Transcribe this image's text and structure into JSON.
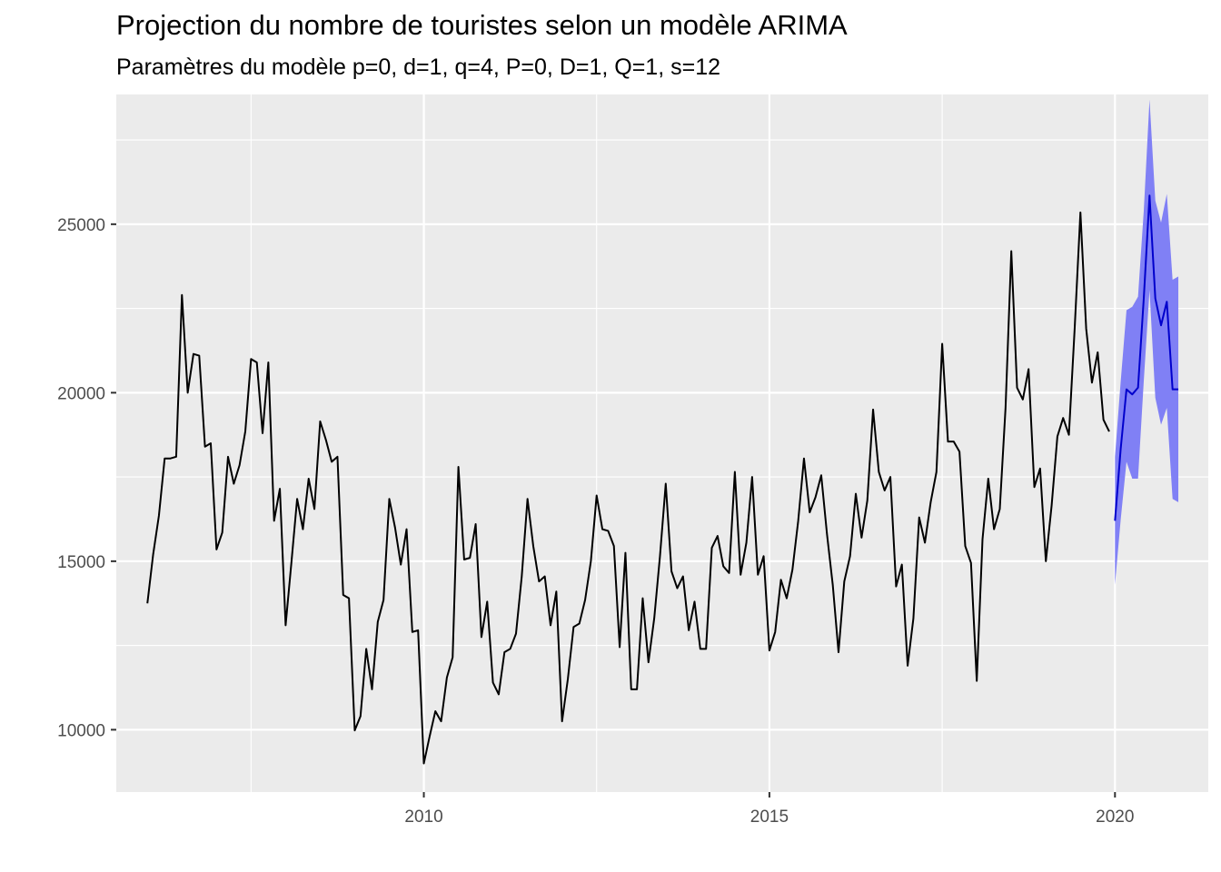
{
  "chart_data": {
    "type": "line",
    "title": "Projection du nombre de touristes selon un modèle ARIMA",
    "subtitle": "Paramètres du modèle p=0, d=1, q=4, P=0, D=1, Q=1, s=12",
    "xlabel": "",
    "ylabel": "",
    "xlim": [
      2005.55,
      2021.35
    ],
    "ylim": [
      8150,
      28850
    ],
    "x_ticks": [
      2010,
      2015,
      2020
    ],
    "x_tick_labels": [
      "2010",
      "2015",
      "2020"
    ],
    "y_ticks": [
      10000,
      15000,
      20000,
      25000
    ],
    "y_tick_labels": [
      "10000",
      "15000",
      "20000",
      "25000"
    ],
    "grid": true,
    "legend": "none",
    "colors": {
      "panel_background": "#EBEBEB",
      "grid": "#FFFFFF",
      "observed": "#000000",
      "forecast": "#0000CC",
      "interval": "#8080F5"
    },
    "series": [
      {
        "kind": "observed",
        "start": [
          2006,
          1
        ],
        "frequency": 12,
        "values": [
          13750,
          15200,
          16350,
          18050,
          18050,
          18100,
          22900,
          20000,
          21150,
          21100,
          18400,
          18500,
          15350,
          15850,
          18100,
          17300,
          17850,
          18850,
          21000,
          20900,
          18800,
          20900,
          16200,
          17150,
          13100,
          14950,
          16850,
          15950,
          17450,
          16550,
          19150,
          18600,
          17950,
          18100,
          14000,
          13900,
          9980,
          10400,
          12400,
          11200,
          13200,
          13850,
          16850,
          16000,
          14900,
          15950,
          12900,
          12950,
          9000,
          9800,
          10550,
          10250,
          11550,
          12150,
          17800,
          15050,
          15100,
          16100,
          12750,
          13800,
          11400,
          11050,
          12300,
          12400,
          12850,
          14550,
          16850,
          15450,
          14400,
          14550,
          13100,
          14100,
          10250,
          11500,
          13050,
          13150,
          13850,
          15000,
          16950,
          15950,
          15900,
          15450,
          12450,
          15250,
          11200,
          11200,
          13900,
          12000,
          13300,
          15150,
          17300,
          14700,
          14200,
          14550,
          12950,
          13800,
          12400,
          12400,
          15400,
          15750,
          14850,
          14650,
          17650,
          14600,
          15550,
          17500,
          14600,
          15150,
          12350,
          12900,
          14450,
          13900,
          14750,
          16200,
          18050,
          16450,
          16900,
          17550,
          15800,
          14300,
          12300,
          14400,
          15150,
          17000,
          15700,
          16800,
          19500,
          17650,
          17100,
          17500,
          14250,
          14900,
          11900,
          13300,
          16300,
          15550,
          16750,
          17650,
          21450,
          18550,
          18550,
          18250,
          15450,
          14950,
          11450,
          15650,
          17450,
          15950,
          16550,
          19550,
          24200,
          20150,
          19800,
          20700,
          17200,
          17750,
          15000,
          16650,
          18700,
          19250,
          18750,
          21900,
          25350,
          21900,
          20300,
          21200,
          19200,
          18850
        ]
      },
      {
        "kind": "forecast",
        "start": [
          2020,
          1
        ],
        "frequency": 12,
        "values": [
          16200,
          18350,
          20100,
          19950,
          20150,
          22800,
          25850,
          22800,
          22000,
          22700,
          20100,
          20100
        ],
        "lower": [
          14300,
          16250,
          17950,
          17450,
          17450,
          20350,
          23050,
          19850,
          19050,
          19550,
          16850,
          16750
        ],
        "upper": [
          18100,
          20350,
          22450,
          22550,
          22850,
          25400,
          28700,
          25700,
          25050,
          25900,
          23350,
          23450
        ]
      }
    ]
  }
}
